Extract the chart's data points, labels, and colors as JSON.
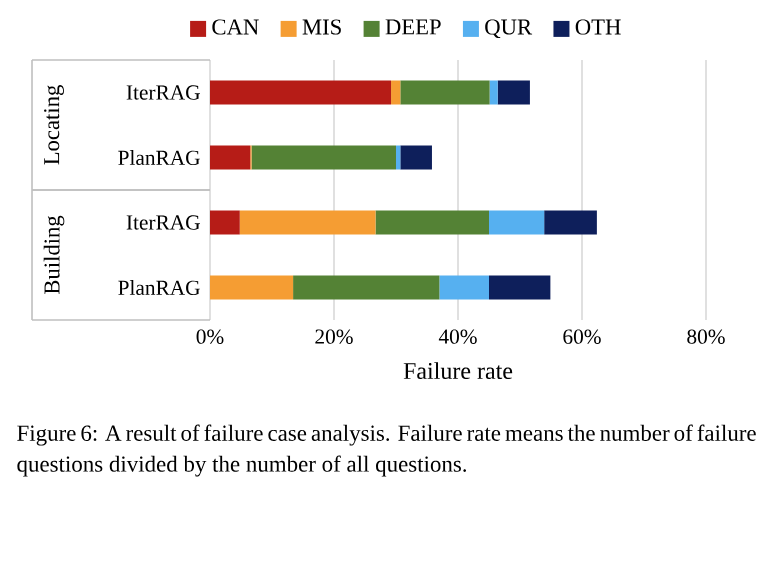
{
  "chart_data": {
    "type": "bar",
    "orientation": "horizontal",
    "stacked": true,
    "categories": [
      "IterRAG",
      "PlanRAG",
      "IterRAG",
      "PlanRAG"
    ],
    "series": [
      {
        "name": "CAN",
        "color": "#b61c17",
        "values": [
          29.2,
          6.5,
          4.8,
          0
        ]
      },
      {
        "name": "MIS",
        "color": "#f59d33",
        "values": [
          1.5,
          0.2,
          21.9,
          13.4
        ]
      },
      {
        "name": "DEEP",
        "color": "#548235",
        "values": [
          14.4,
          23.3,
          18.3,
          23.6
        ]
      },
      {
        "name": "QUR",
        "color": "#56b0f0",
        "values": [
          1.3,
          0.7,
          8.9,
          8.0
        ]
      },
      {
        "name": "OTH",
        "color": "#0e1f5b",
        "values": [
          5.2,
          5.1,
          8.5,
          9.9
        ]
      }
    ],
    "xlabel": "Failure rate",
    "xlim": [
      0,
      80
    ],
    "xticks": [
      {
        "value": 0,
        "label": "0%"
      },
      {
        "value": 20,
        "label": "20%"
      },
      {
        "value": 40,
        "label": "40%"
      },
      {
        "value": 60,
        "label": "60%"
      },
      {
        "value": 80,
        "label": "80%"
      }
    ],
    "grid": "x",
    "legend": "top",
    "annotations": [
      "Locating",
      "Building",
      "Figure 6: A result of failure case analysis. Failure rate means the number of failure questions divided by the number of all questions."
    ]
  }
}
